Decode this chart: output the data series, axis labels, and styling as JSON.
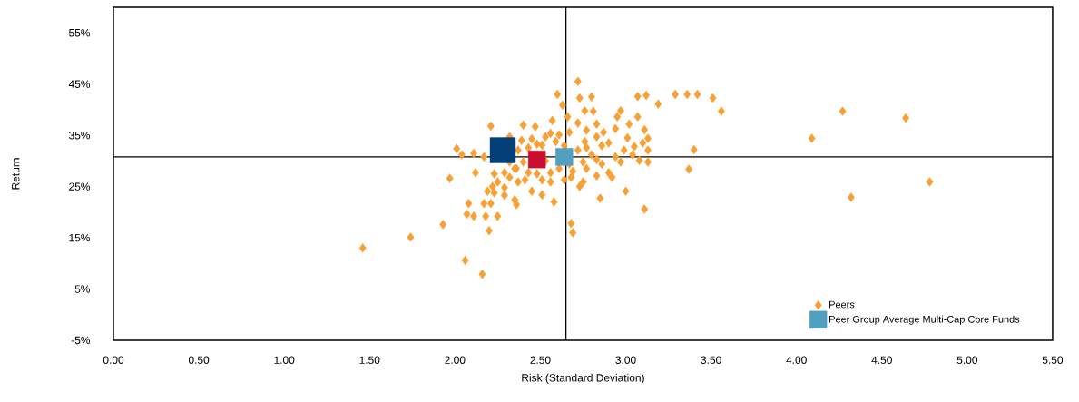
{
  "chart_data": {
    "type": "scatter",
    "xlabel": "Risk (Standard Deviation)",
    "ylabel": "Return",
    "xlim": [
      0,
      5.5
    ],
    "ylim": [
      -5,
      60
    ],
    "xticks": [
      {
        "value": 0,
        "label": "0.00"
      },
      {
        "value": 0.5,
        "label": "0.50"
      },
      {
        "value": 1,
        "label": "1.00"
      },
      {
        "value": 1.5,
        "label": "1.50"
      },
      {
        "value": 2,
        "label": "2.00"
      },
      {
        "value": 2.5,
        "label": "2.50"
      },
      {
        "value": 3,
        "label": "3.00"
      },
      {
        "value": 3.5,
        "label": "3.50"
      },
      {
        "value": 4,
        "label": "4.00"
      },
      {
        "value": 4.5,
        "label": "4.50"
      },
      {
        "value": 5,
        "label": "5.00"
      },
      {
        "value": 5.5,
        "label": "5.50"
      }
    ],
    "yticks": [
      {
        "value": -5,
        "label": "-5%"
      },
      {
        "value": 5,
        "label": "5%"
      },
      {
        "value": 15,
        "label": "15%"
      },
      {
        "value": 25,
        "label": "25%"
      },
      {
        "value": 35,
        "label": "35%"
      },
      {
        "value": 45,
        "label": "45%"
      },
      {
        "value": 55,
        "label": "55%"
      }
    ],
    "grid": false,
    "legend": "bottom right",
    "ref_lines": [
      {
        "axis": "x",
        "value": 2.65,
        "color": "#000000"
      },
      {
        "axis": "y",
        "value": 30.8,
        "color": "#000000"
      }
    ],
    "series": [
      {
        "name": "Peers",
        "color": "#f7a035",
        "marker": "diamond",
        "x": [
          1.46,
          1.74,
          1.93,
          1.97,
          2.06,
          2.16,
          2.01,
          2.04,
          2.2,
          2.11,
          2.07,
          2.11,
          2.17,
          2.08,
          2.18,
          2.25,
          2.21,
          2.12,
          2.21,
          2.17,
          2.23,
          2.22,
          2.19,
          2.23,
          2.29,
          2.35,
          2.36,
          2.32,
          2.4,
          2.47,
          2.39,
          2.45,
          2.36,
          2.41,
          2.48,
          2.53,
          2.45,
          2.51,
          2.58,
          2.6,
          2.57,
          2.51,
          2.56,
          2.63,
          2.67,
          2.66,
          2.72,
          2.73,
          2.8,
          2.76,
          2.81,
          2.72,
          2.77,
          2.83,
          2.76,
          2.83,
          2.87,
          2.94,
          2.97,
          2.95,
          3.02,
          3.01,
          3.07,
          3.07,
          3.12,
          3.19,
          3.29,
          3.36,
          3.42,
          3.51,
          3.56,
          3.11,
          3.13,
          3.1,
          3.13,
          3.05,
          3.04,
          3.08,
          3.13,
          3.11,
          3.0,
          2.9,
          2.92,
          2.85,
          2.83,
          2.77,
          2.69,
          2.73,
          2.67,
          2.68,
          2.69,
          2.86,
          2.9,
          2.99,
          3.4,
          3.37,
          4.09,
          4.27,
          4.32,
          4.64,
          4.78,
          2.32,
          2.37,
          2.43,
          2.48,
          2.53,
          2.59,
          2.61,
          2.64,
          2.72,
          2.77,
          2.8,
          2.83,
          2.75,
          2.61,
          2.56,
          2.51,
          2.43,
          2.37,
          2.29,
          2.35,
          2.56,
          2.64,
          2.68,
          2.75,
          2.86,
          2.94,
          2.97,
          2.32,
          2.4,
          2.29,
          2.25
        ],
        "values": [
          13.0,
          15.1,
          17.6,
          26.6,
          10.6,
          7.9,
          32.4,
          31.2,
          16.4,
          31.5,
          19.6,
          19.2,
          21.7,
          21.7,
          19.2,
          19.2,
          21.7,
          27.7,
          36.8,
          30.8,
          27.5,
          25.0,
          24.1,
          23.8,
          24.8,
          22.4,
          21.5,
          26.8,
          37.0,
          36.7,
          34.0,
          34.3,
          28.5,
          26.3,
          27.5,
          30.0,
          24.1,
          23.4,
          22.0,
          43.0,
          37.9,
          33.1,
          35.4,
          40.9,
          35.6,
          38.6,
          45.5,
          42.3,
          42.5,
          39.8,
          39.7,
          37.4,
          36.0,
          37.2,
          33.8,
          34.7,
          35.6,
          36.3,
          39.8,
          38.6,
          37.2,
          34.5,
          38.6,
          42.6,
          42.8,
          41.1,
          43.0,
          43.0,
          43.0,
          42.3,
          39.7,
          36.1,
          34.4,
          33.5,
          32.1,
          32.8,
          31.2,
          30.1,
          29.8,
          20.6,
          24.1,
          27.7,
          26.8,
          22.7,
          27.1,
          28.5,
          28.0,
          25.0,
          29.4,
          17.8,
          16.0,
          33.0,
          33.5,
          32.1,
          32.2,
          28.4,
          34.4,
          39.7,
          22.9,
          38.4,
          25.9,
          34.7,
          32.1,
          32.6,
          33.3,
          34.7,
          33.8,
          35.1,
          33.0,
          32.1,
          32.6,
          31.2,
          30.3,
          29.8,
          28.5,
          27.7,
          26.3,
          27.7,
          25.9,
          27.7,
          28.5,
          25.9,
          26.3,
          26.8,
          25.9,
          29.4,
          30.8,
          29.8,
          29.8,
          29.8,
          23.3,
          25.9
        ]
      },
      {
        "color": "#034078",
        "marker": "square",
        "x": [
          2.28
        ],
        "values": [
          32.1
        ]
      },
      {
        "name": "Peer Group Average Multi-Cap Core Funds",
        "color": "#52a0c0",
        "marker": "square",
        "x": [
          2.64
        ],
        "values": [
          30.8
        ]
      },
      {
        "color": "#c8102e",
        "marker": "square",
        "x": [
          2.48
        ],
        "values": [
          30.3
        ]
      }
    ]
  }
}
